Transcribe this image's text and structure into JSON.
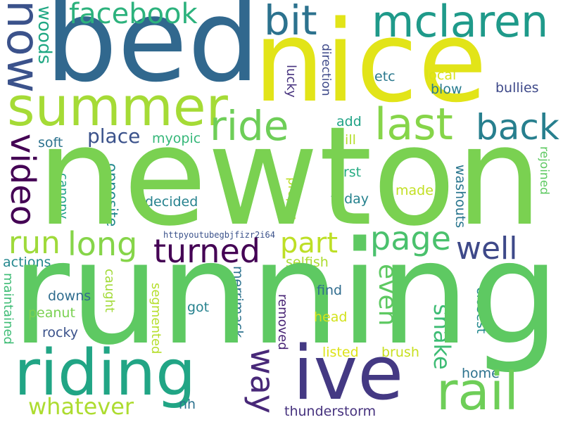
{
  "palette": {
    "newton": "#7ad151",
    "running": "#5ec962",
    "bed": "#31688e",
    "nice": "#e2e418",
    "ive": "#443983",
    "riding": "#21a585",
    "summer": "#a5db36",
    "last": "#86d549",
    "rail": "#6ece58",
    "mclaren": "#1f9a8a",
    "facebook": "#2db27d",
    "bit": "#2c728e",
    "now": "#3b528b",
    "ride": "#6ece58",
    "back": "#277f8e",
    "video": "#440154",
    "turned": "#440154",
    "long": "#86d549",
    "run": "#9fda3a",
    "well": "#3e4989",
    "page": "#4ac16d",
    "part": "#bddf26",
    "way": "#482878",
    "even": "#5ec962",
    "whatever": "#addc30",
    "snake": "#3dbc74",
    "woods": "#22a884",
    "place": "#3b528b",
    "myopic": "#35b779",
    "soft": "#2c728e",
    "etc": "#2a788e",
    "local": "#d8e219",
    "blow": "#287c8e",
    "bullies": "#3e4989",
    "add": "#20a386",
    "hill": "#b5de2b",
    "first": "#25ab82",
    "today": "#26828e",
    "made": "#c2df23",
    "direction": "#3e4989",
    "lucky": "#46327e",
    "rejoined": "#5ec962",
    "canopy": "#1fa088",
    "opposite": "#23898e",
    "decided": "#26828e",
    "proper": "#bddf26",
    "washouts": "#2a768e",
    "selfish": "#addc30",
    "actions": "#24878e",
    "merrimack": "#2c728e",
    "caught": "#a2da37",
    "segmented": "#b5de2b",
    "maintained": "#3dbc74",
    "downs": "#2f6c8e",
    "peanut": "#7ad151",
    "rocky": "#3b528b",
    "got": "#26828e",
    "removed": "#482475",
    "find": "#2f6c8e",
    "head": "#d2e21b",
    "listed": "#dde318",
    "brush": "#c8e020",
    "closest": "#23898e",
    "home": "#2c728e",
    "nh": "#2c728e",
    "thunderstorm": "#46327e",
    "url": "#3b528b"
  },
  "words": {
    "newton": "newton",
    "running": "running",
    "bed": "bed",
    "nice": "nice",
    "ive": "ive",
    "riding": "riding",
    "summer": "summer",
    "last": "last",
    "rail": "rail",
    "mclaren": "mclaren",
    "facebook": "facebook",
    "bit": "bit",
    "now": "now",
    "ride": "ride",
    "back": "back",
    "video": "video",
    "turned": "turned",
    "long": "long",
    "run": "run",
    "well": "well",
    "page": "page",
    "part": "part",
    "way": "way",
    "even": "even",
    "whatever": "whatever",
    "snake": "snake",
    "woods": "woods",
    "place": "place",
    "myopic": "myopic",
    "soft": "soft",
    "etc": "etc",
    "local": "local",
    "blow": "blow",
    "bullies": "bullies",
    "add": "add",
    "hill": "hill",
    "first": "first",
    "today": "today",
    "made": "made",
    "direction": "direction",
    "lucky": "lucky",
    "rejoined": "rejoined",
    "canopy": "canopy",
    "opposite": "opposite",
    "decided": "decided",
    "proper": "proper",
    "washouts": "washouts",
    "selfish": "selfish",
    "actions": "actions",
    "merrimack": "merrimack",
    "caught": "caught",
    "segmented": "segmented",
    "maintained": "maintained",
    "downs": "downs",
    "peanut": "peanut",
    "rocky": "rocky",
    "got": "got",
    "removed": "removed",
    "find": "find",
    "head": "head",
    "listed": "listed",
    "brush": "brush",
    "closest": "closest",
    "home": "home",
    "nh": "nh",
    "thunderstorm": "thunderstorm",
    "url": "httpyoutubegbjfizr2i64"
  }
}
